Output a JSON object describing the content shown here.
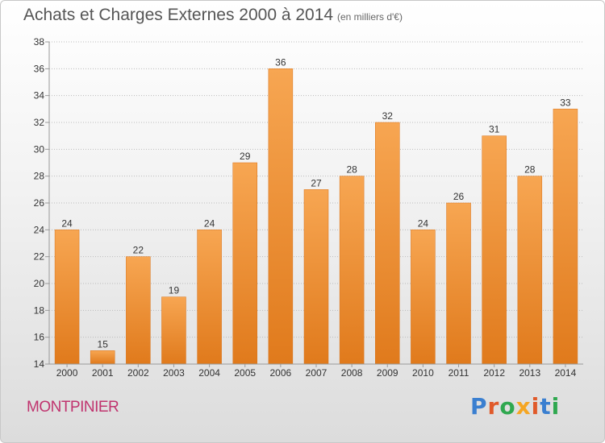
{
  "header": {
    "title": "Achats et Charges Externes 2000 à 2014",
    "unit": "(en milliers d'€)"
  },
  "footer": {
    "town": "MONTPINIER",
    "logo_text": "Proxiti",
    "logo_colors": [
      "#3a7fd0",
      "#e05a2a",
      "#2fa84f",
      "#f5a623",
      "#e05a2a",
      "#3a7fd0",
      "#2fa84f"
    ]
  },
  "colors": {
    "bar_top": "#f7a652",
    "bar_bottom": "#e07a1c",
    "grid": "#bbbbbb",
    "axis": "#999999",
    "text": "#333333"
  },
  "chart_data": {
    "type": "bar",
    "categories": [
      "2000",
      "2001",
      "2002",
      "2003",
      "2004",
      "2005",
      "2006",
      "2007",
      "2008",
      "2009",
      "2010",
      "2011",
      "2012",
      "2013",
      "2014"
    ],
    "values": [
      24,
      15,
      22,
      19,
      24,
      29,
      36,
      27,
      28,
      32,
      24,
      26,
      31,
      28,
      33
    ],
    "title": "Achats et Charges Externes 2000 à 2014",
    "ylim": [
      14,
      38
    ],
    "yticks": [
      14,
      16,
      18,
      20,
      22,
      24,
      26,
      28,
      30,
      32,
      34,
      36,
      38
    ],
    "grid": true,
    "data_labels": true
  }
}
